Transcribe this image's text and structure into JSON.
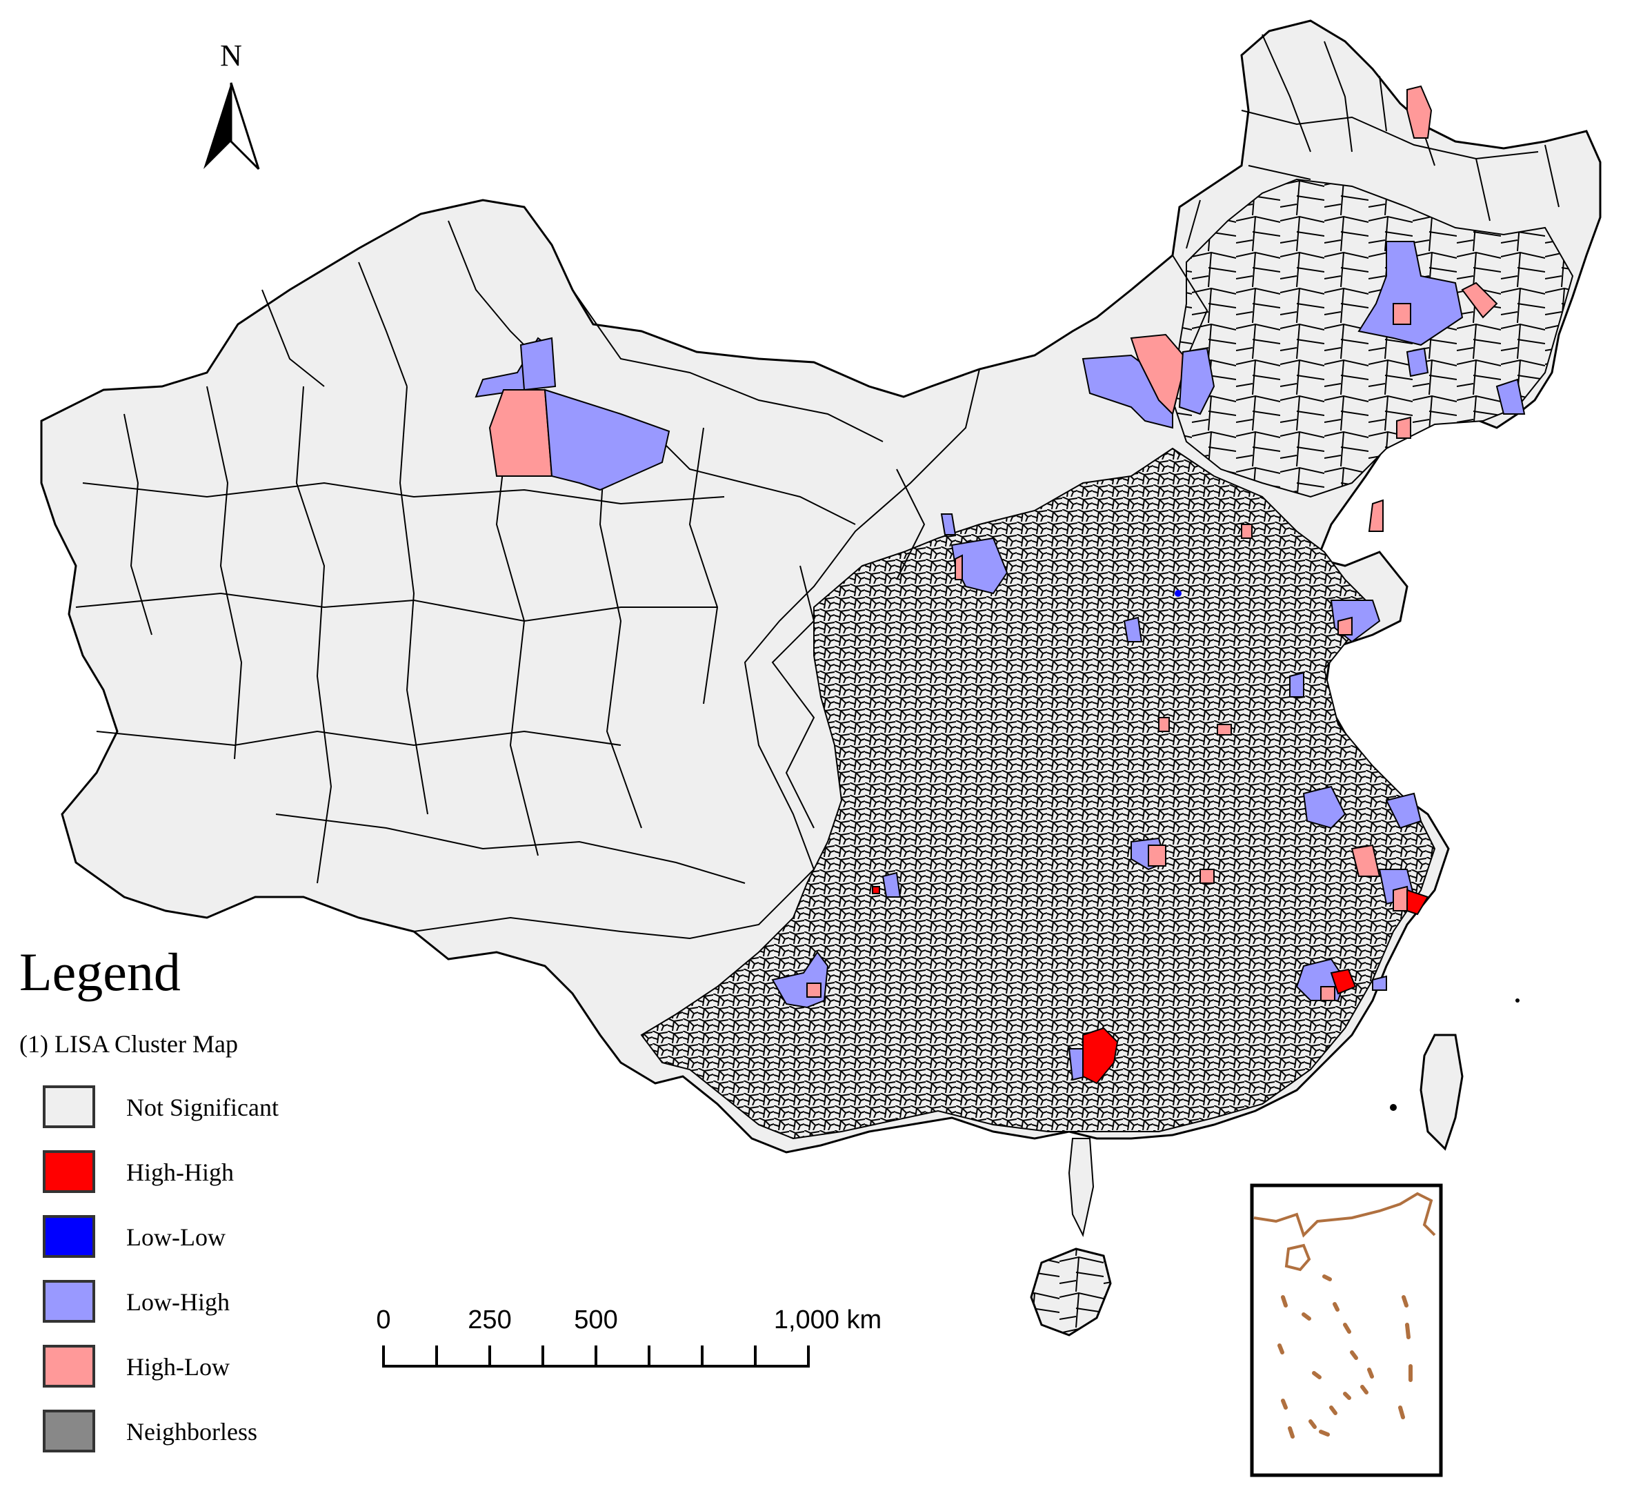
{
  "north_arrow": {
    "label": "N"
  },
  "legend": {
    "title": "Legend",
    "subtitle": "(1) LISA Cluster Map",
    "items": [
      {
        "label": "Not Significant",
        "color": "#efefef"
      },
      {
        "label": "High-High",
        "color": "#ff0000"
      },
      {
        "label": "Low-Low",
        "color": "#0000ff"
      },
      {
        "label": "Low-High",
        "color": "#9999ff"
      },
      {
        "label": "High-Low",
        "color": "#ff9999"
      },
      {
        "label": "Neighborless",
        "color": "#888888"
      }
    ]
  },
  "scale_bar": {
    "labels": [
      "0",
      "250",
      "500",
      "1,000 km"
    ],
    "ticks_km": [
      0,
      125,
      250,
      375,
      500,
      625,
      750,
      875,
      1000
    ]
  },
  "colors": {
    "land": "#efefef",
    "border": "#000000",
    "inset_coast": "#b0703f"
  }
}
